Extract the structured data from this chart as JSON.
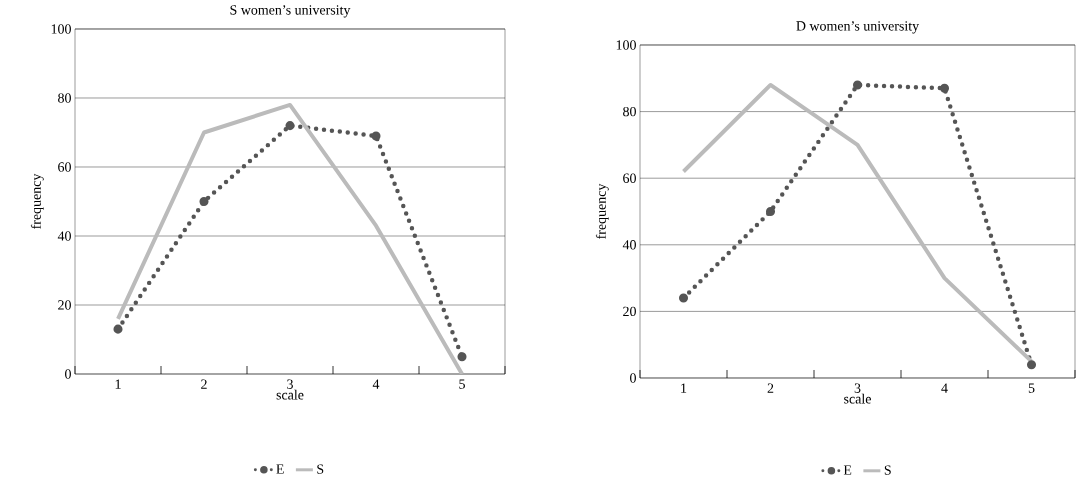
{
  "chart_data": [
    {
      "type": "line",
      "title": "S women’s university",
      "xlabel": "scale",
      "ylabel": "frequency",
      "categories": [
        "1",
        "2",
        "3",
        "4",
        "5"
      ],
      "series": [
        {
          "name": "E",
          "color": "#555555",
          "line_style": "dotted",
          "marker": "circle",
          "values": [
            13,
            50,
            72,
            69,
            5
          ]
        },
        {
          "name": "S",
          "color": "#bbbbbb",
          "line_style": "solid",
          "values": [
            16,
            70,
            78,
            43,
            0
          ]
        }
      ],
      "ylim": [
        0,
        100
      ],
      "yticks": [
        0,
        20,
        40,
        60,
        80,
        100
      ],
      "grid": "y",
      "legend": "bottom"
    },
    {
      "type": "line",
      "title": "D women’s university",
      "xlabel": "scale",
      "ylabel": "frequency",
      "categories": [
        "1",
        "2",
        "3",
        "4",
        "5"
      ],
      "series": [
        {
          "name": "E",
          "color": "#555555",
          "line_style": "dotted",
          "marker": "circle",
          "values": [
            24,
            50,
            88,
            87,
            4
          ]
        },
        {
          "name": "S",
          "color": "#bbbbbb",
          "line_style": "solid",
          "values": [
            62,
            88,
            70,
            30,
            5
          ]
        }
      ],
      "ylim": [
        0,
        100
      ],
      "yticks": [
        0,
        20,
        40,
        60,
        80,
        100
      ],
      "grid": "y",
      "legend": "bottom"
    }
  ]
}
